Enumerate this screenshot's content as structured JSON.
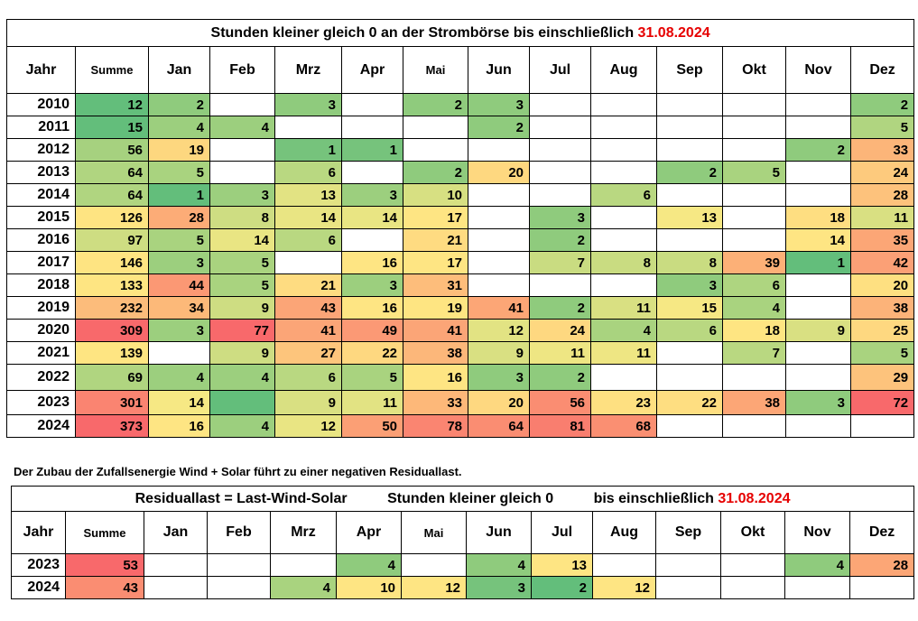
{
  "table1": {
    "title_main": "Stunden kleiner gleich  0  an der Strombörse bis einschließlich",
    "title_date": "31.08.2024",
    "headers": [
      "Jahr",
      "Summe",
      "Jan",
      "Feb",
      "Mrz",
      "Apr",
      "Mai",
      "Jun",
      "Jul",
      "Aug",
      "Sep",
      "Okt",
      "Nov",
      "Dez"
    ],
    "rows": [
      {
        "cells": [
          "2010",
          "12",
          "2",
          "",
          "3",
          "",
          "2",
          "3",
          "",
          "",
          "",
          "",
          "",
          "2"
        ]
      },
      {
        "cells": [
          "2011",
          "15",
          "4",
          "4",
          "",
          "",
          "",
          "2",
          "",
          "",
          "",
          "",
          "",
          "5"
        ]
      },
      {
        "cells": [
          "2012",
          "56",
          "19",
          "",
          "1",
          "1",
          "",
          "",
          "",
          "",
          "",
          "",
          "2",
          "33"
        ]
      },
      {
        "cells": [
          "2013",
          "64",
          "5",
          "",
          "6",
          "",
          "2",
          "20",
          "",
          "",
          "2",
          "5",
          "",
          "24"
        ]
      },
      {
        "cells": [
          "2014",
          "64",
          "1",
          "3",
          "13",
          "3",
          "10",
          "",
          "",
          "6",
          "",
          "",
          "",
          "28"
        ]
      },
      {
        "cells": [
          "2015",
          "126",
          "28",
          "8",
          "14",
          "14",
          "17",
          "",
          "3",
          "",
          "13",
          "",
          "18",
          "11"
        ]
      },
      {
        "cells": [
          "2016",
          "97",
          "5",
          "14",
          "6",
          "",
          "21",
          "",
          "2",
          "",
          "",
          "",
          "14",
          "35"
        ]
      },
      {
        "cells": [
          "2017",
          "146",
          "3",
          "5",
          "",
          "16",
          "17",
          "",
          "7",
          "8",
          "8",
          "39",
          "1",
          "42"
        ]
      },
      {
        "cells": [
          "2018",
          "133",
          "44",
          "5",
          "21",
          "3",
          "31",
          "",
          "",
          "",
          "3",
          "6",
          "",
          "20"
        ]
      },
      {
        "cells": [
          "2019",
          "232",
          "34",
          "9",
          "43",
          "16",
          "19",
          "41",
          "2",
          "11",
          "15",
          "4",
          "",
          "38"
        ]
      },
      {
        "cells": [
          "2020",
          "309",
          "3",
          "77",
          "41",
          "49",
          "41",
          "12",
          "24",
          "4",
          "6",
          "18",
          "9",
          "25"
        ]
      },
      {
        "cells": [
          "2021",
          "139",
          "",
          "9",
          "27",
          "22",
          "38",
          "9",
          "11",
          "11",
          "",
          "7",
          "",
          "5"
        ]
      },
      {
        "cells": [
          "2022",
          "69",
          "4",
          "4",
          "6",
          "5",
          "16",
          "3",
          "2",
          "",
          "",
          "",
          "",
          "29"
        ]
      },
      {
        "cells": [
          "2023",
          "301",
          "14",
          "",
          "9",
          "11",
          "33",
          "20",
          "56",
          "23",
          "22",
          "38",
          "3",
          "72"
        ]
      },
      {
        "cells": [
          "2024",
          "373",
          "16",
          "4",
          "12",
          "50",
          "78",
          "64",
          "81",
          "68",
          "",
          "",
          "",
          ""
        ]
      }
    ],
    "colors": [
      [
        "",
        "#63be7b",
        "#8fcb7d",
        "",
        "#8fcb7d",
        "",
        "#8fcb7d",
        "#8fcb7d",
        "",
        "",
        "",
        "",
        "",
        "#8fcb7d"
      ],
      [
        "",
        "#63be7b",
        "#9ccf7e",
        "#9ccf7e",
        "",
        "",
        "",
        "#8fcb7d",
        "",
        "",
        "",
        "",
        "",
        "#b0d580"
      ],
      [
        "",
        "#a6d17f",
        "#fdd77f",
        "",
        "#76c37c",
        "#76c37c",
        "",
        "",
        "",
        "",
        "",
        "",
        "#8fcb7d",
        "#fcb579"
      ],
      [
        "",
        "#b0d580",
        "#a9d37f",
        "",
        "#b9d881",
        "",
        "#8fcb7d",
        "#fed880",
        "",
        "",
        "#8fcb7d",
        "#a9d37f",
        "",
        "#fdca7d"
      ],
      [
        "",
        "#b0d580",
        "#63be7b",
        "#9ccf7e",
        "#e2e383",
        "#9ccf7e",
        "#d7e082",
        "",
        "",
        "#b9d881",
        "",
        "",
        "",
        "#fdc27c"
      ],
      [
        "",
        "#fee482",
        "#fcac77",
        "#cedd82",
        "#e9e583",
        "#e9e583",
        "#fee583",
        "",
        "#8fcb7d",
        "",
        "#f6e884",
        "",
        "#fede81",
        "#d9e082"
      ],
      [
        "",
        "#cedd82",
        "#a9d37f",
        "#e9e583",
        "#b9d881",
        "",
        "#fedb81",
        "",
        "#8fcb7d",
        "",
        "",
        "",
        "#fee583",
        "#fca676"
      ],
      [
        "",
        "#fee482",
        "#9ccf7e",
        "#a9d37f",
        "",
        "#fee583",
        "#fee583",
        "",
        "#c9dc81",
        "#c9dc81",
        "#c9dc81",
        "#fcb077",
        "#63be7b",
        "#fba076"
      ],
      [
        "",
        "#fee582",
        "#fb9874",
        "#a9d37f",
        "#fedc81",
        "#9ccf7e",
        "#fdbd7b",
        "",
        "",
        "",
        "#8fcb7d",
        "#aed580",
        "",
        "#fee081"
      ],
      [
        "",
        "#fcbc7b",
        "#fcb979",
        "#cedd82",
        "#fba577",
        "#fee583",
        "#fee582",
        "#fca676",
        "#8fcb7d",
        "#d9e082",
        "#f6e884",
        "#a9d37f",
        "",
        "#fcb379"
      ],
      [
        "",
        "#f8696b",
        "#9ccf7e",
        "#f8696b",
        "#fba577",
        "#fb9975",
        "#fba577",
        "#e2e383",
        "#fed880",
        "#a9d37f",
        "#b9d881",
        "#fee582",
        "#d9e082",
        "#fed880"
      ],
      [
        "",
        "#fee582",
        "",
        "#cedd82",
        "#fdc57c",
        "#fed880",
        "#fcb77a",
        "#d9e082",
        "#eee683",
        "#eee683",
        "",
        "#b9d881",
        "",
        "#a9d37f"
      ],
      [
        "",
        "#b0d580",
        "#9ccf7e",
        "#9ccf7e",
        "#b9d881",
        "#a9d37f",
        "#fee583",
        "#8fcb7d",
        "#8fcb7d",
        "",
        "",
        "",
        "",
        "#fdc37c"
      ],
      [
        "",
        "#fa8471",
        "#f6e884",
        "#63be7b",
        "#d9e082",
        "#e2e383",
        "#fdb879",
        "#fed880",
        "#fa8d72",
        "#fee081",
        "#fede81",
        "#fca676",
        "#8fcb7d",
        "#f8696b"
      ],
      [
        "",
        "#f8696b",
        "#fee583",
        "#9ccf7e",
        "#e9e583",
        "#fb9f75",
        "#fa8571",
        "#fa8d72",
        "#f97e6f",
        "#fa8f72",
        "",
        "",
        "",
        ""
      ]
    ]
  },
  "note": "Der Zubau der Zufallsenergie Wind + Solar führt zu einer negativen Residuallast.",
  "table2": {
    "title_a": "Residuallast = Last-Wind-Solar",
    "title_b": "Stunden kleiner gleich  0",
    "title_c": "bis einschließlich",
    "title_date": "31.08.2024",
    "headers": [
      "Jahr",
      "Summe",
      "Jan",
      "Feb",
      "Mrz",
      "Apr",
      "Mai",
      "Jun",
      "Jul",
      "Aug",
      "Sep",
      "Okt",
      "Nov",
      "Dez"
    ],
    "rows": [
      {
        "cells": [
          "2023",
          "53",
          "",
          "",
          "",
          "4",
          "",
          "4",
          "13",
          "",
          "",
          "",
          "4",
          "28"
        ]
      },
      {
        "cells": [
          "2024",
          "43",
          "",
          "",
          "4",
          "10",
          "12",
          "3",
          "2",
          "12",
          "",
          "",
          "",
          ""
        ]
      }
    ],
    "colors": [
      [
        "",
        "#f8696b",
        "",
        "",
        "",
        "#8fcb7d",
        "",
        "#8fcb7d",
        "#fee583",
        "",
        "",
        "",
        "#8fcb7d",
        "#fca676"
      ],
      [
        "",
        "#fa8d72",
        "",
        "",
        "#a9d37f",
        "#fee583",
        "#fee583",
        "#76c37c",
        "#63be7b",
        "#fee583",
        "",
        "",
        "",
        ""
      ]
    ]
  }
}
